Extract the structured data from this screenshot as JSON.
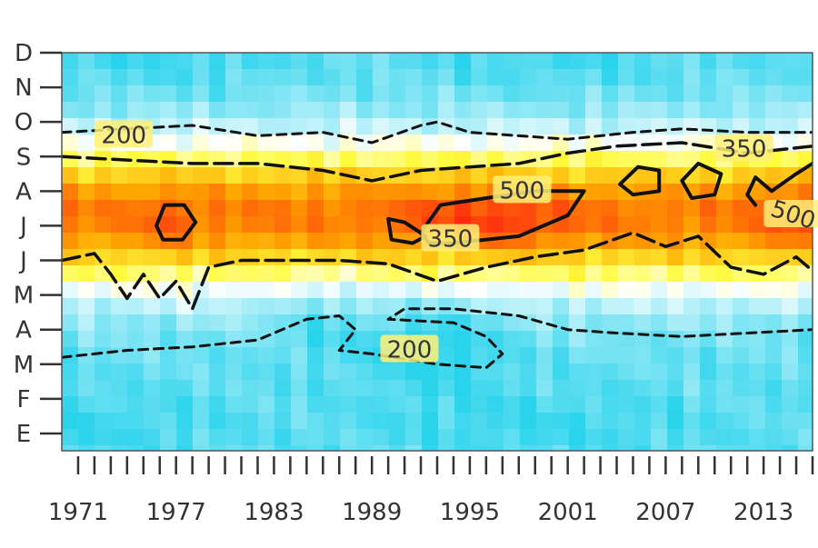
{
  "chart_data": {
    "type": "heatmap",
    "title": "",
    "xlabel": "",
    "ylabel": "",
    "x_range": [
      1970,
      2016
    ],
    "y_categories": [
      "E",
      "F",
      "M",
      "A",
      "M",
      "J",
      "J",
      "A",
      "S",
      "O",
      "N",
      "D"
    ],
    "x_tick_labels": [
      "1971",
      "1977",
      "1983",
      "1989",
      "1995",
      "2001",
      "2007",
      "2013"
    ],
    "x_tick_label_years": [
      1971,
      1977,
      1983,
      1989,
      1995,
      2001,
      2007,
      2013
    ],
    "contour_levels": [
      200,
      350,
      500
    ],
    "contour_labels": [
      {
        "text": "200",
        "year": 1973.8,
        "month": 9.6
      },
      {
        "text": "200",
        "year": 1991.3,
        "month": 3.4
      },
      {
        "text": "350",
        "year": 1993.8,
        "month": 6.6
      },
      {
        "text": "500",
        "year": 1998.2,
        "month": 8.0
      },
      {
        "text": "350",
        "year": 2011.8,
        "month": 9.2
      },
      {
        "text": "500",
        "year": 2014.8,
        "month": 7.3
      }
    ],
    "peak_months": [
      "J",
      "A"
    ],
    "colors": {
      "low": "#29d3ec",
      "mid_low": "#ffffff",
      "mid": "#fffb3d",
      "mid_high": "#ffa500",
      "high": "#ff2a10"
    }
  }
}
